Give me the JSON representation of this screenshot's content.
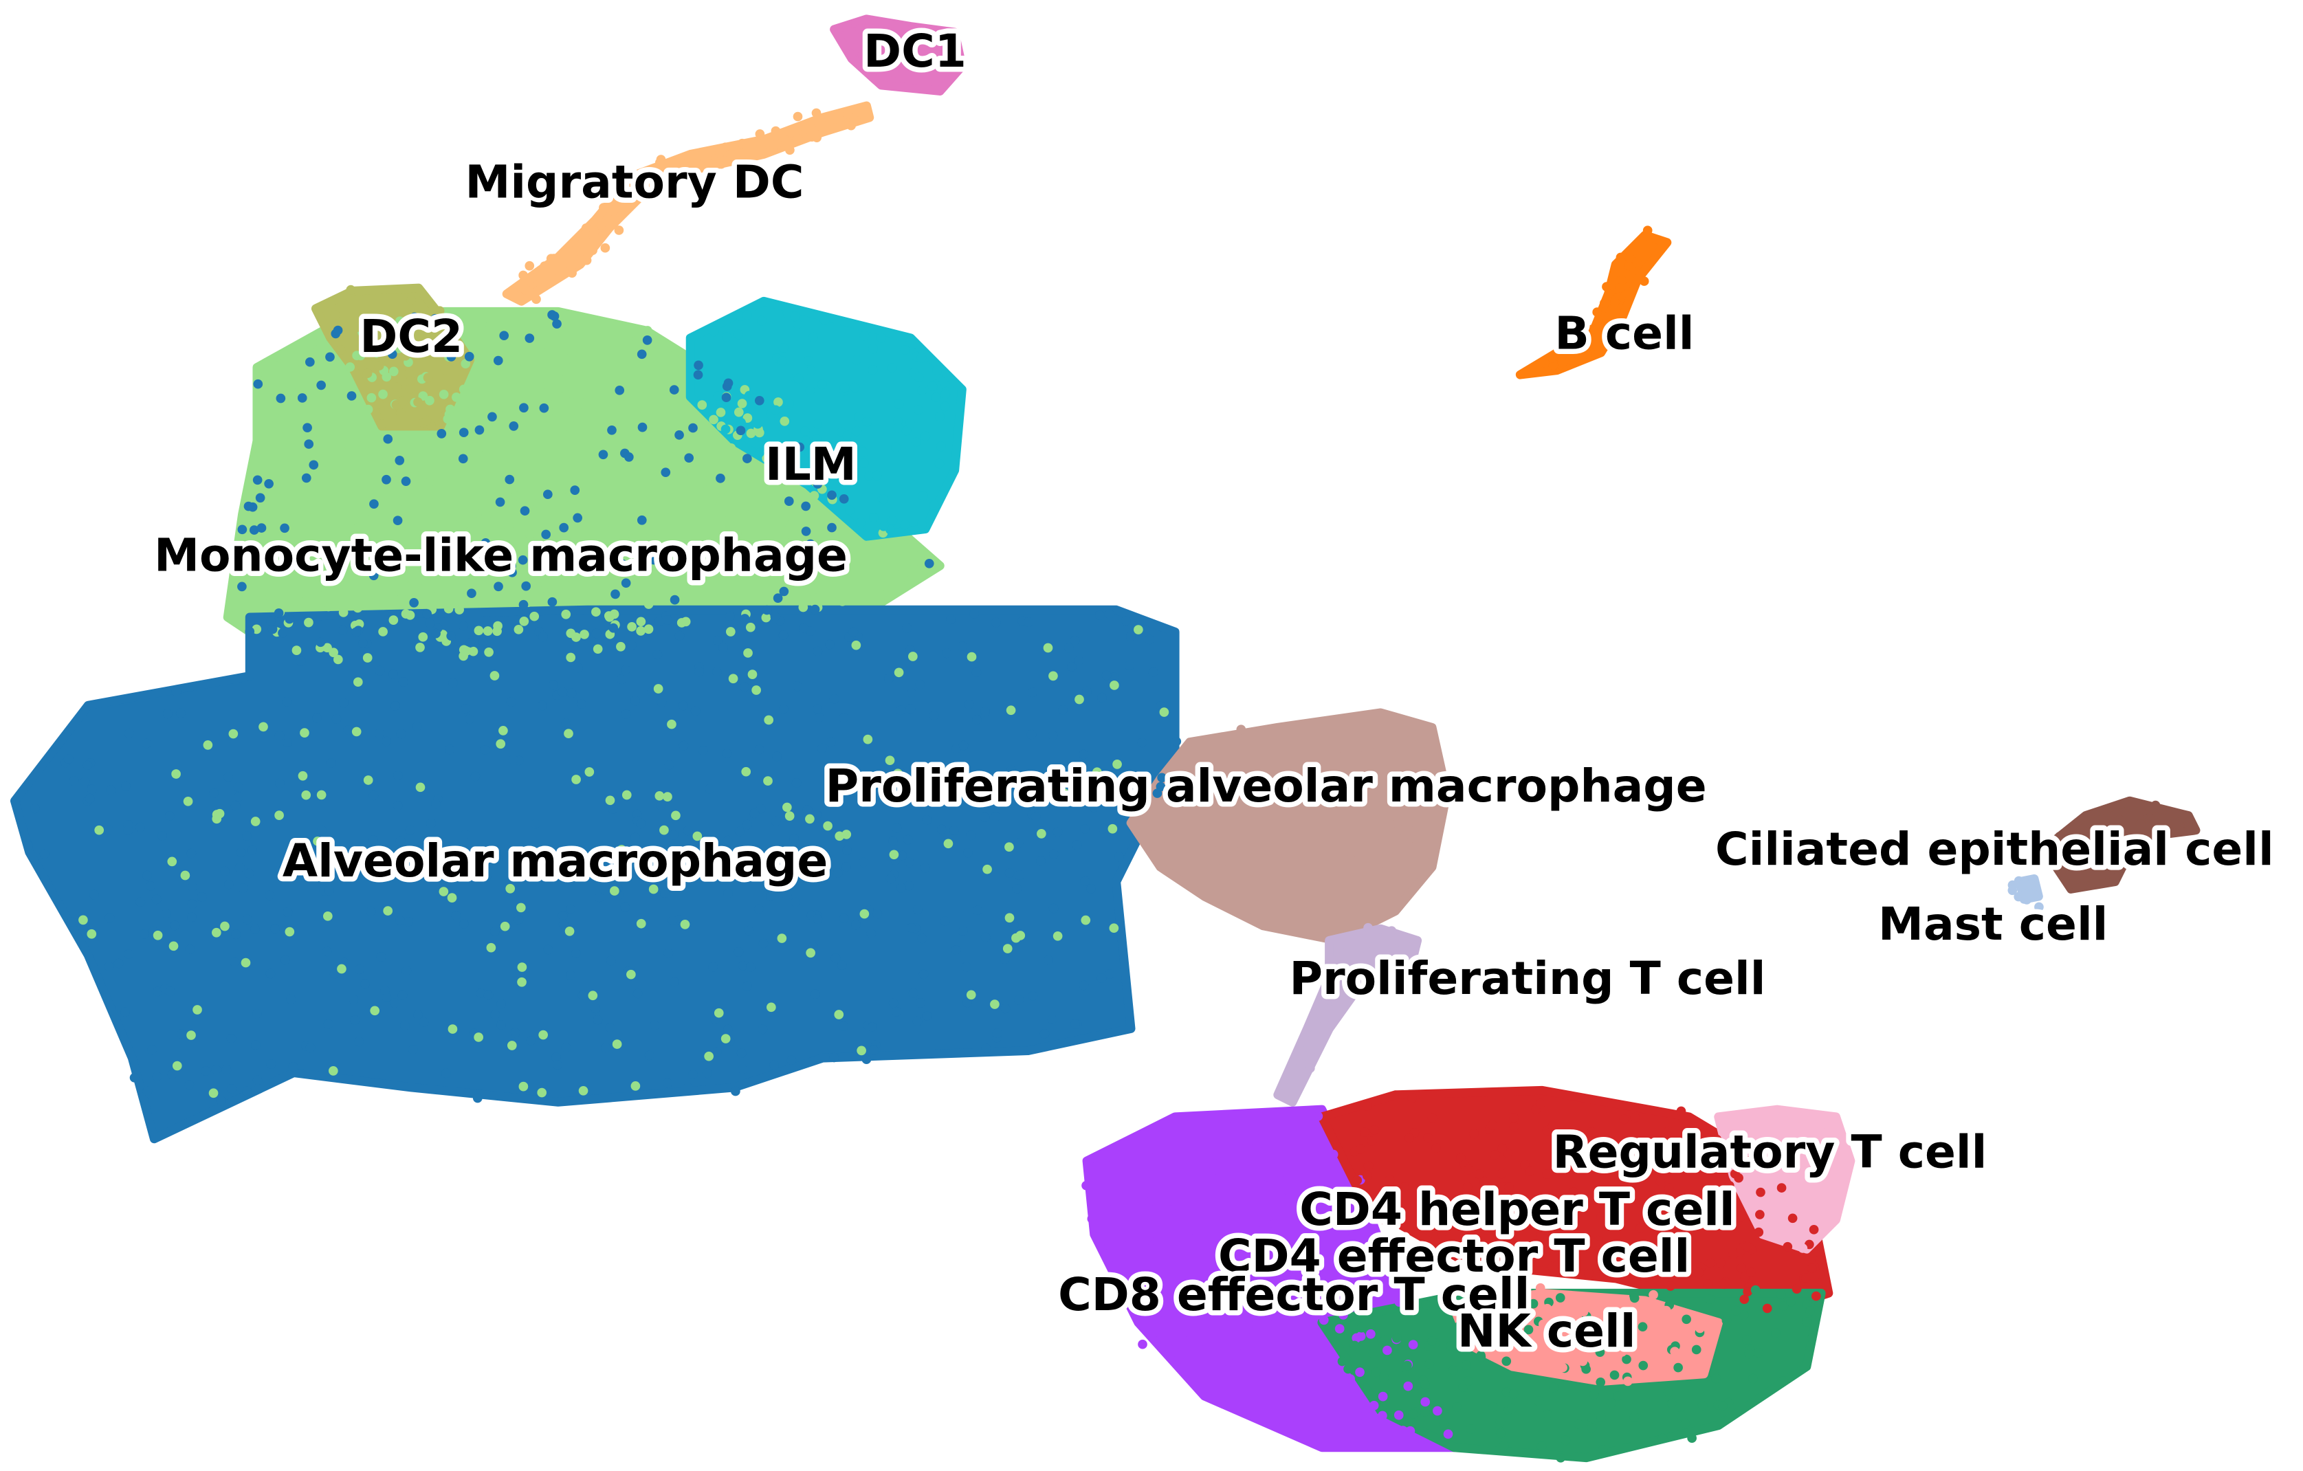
{
  "chart_data": {
    "type": "scatter",
    "series": [
      {
        "name": "Alveolar macrophage",
        "color": "#1f77b4"
      },
      {
        "name": "B cell",
        "color": "#ff7f0e"
      },
      {
        "name": "CD4 effector T cell",
        "color": "#279e68"
      },
      {
        "name": "CD4 helper T cell",
        "color": "#d62728"
      },
      {
        "name": "CD8 effector T cell",
        "color": "#aa40fc"
      },
      {
        "name": "Ciliated epithelial cell",
        "color": "#8c564b"
      },
      {
        "name": "DC1",
        "color": "#e377c2"
      },
      {
        "name": "DC2",
        "color": "#b5bd61"
      },
      {
        "name": "ILM",
        "color": "#17becf"
      },
      {
        "name": "Mast cell",
        "color": "#aec7e8"
      },
      {
        "name": "Migratory DC",
        "color": "#ffbb78"
      },
      {
        "name": "Monocyte-like macrophage",
        "color": "#98df8a"
      },
      {
        "name": "NK cell",
        "color": "#ff9896"
      },
      {
        "name": "Proliferating T cell",
        "color": "#c5b0d5"
      },
      {
        "name": "Proliferating alveolar macrophage",
        "color": "#c49c94"
      },
      {
        "name": "Regulatory T cell",
        "color": "#f7b6d2"
      }
    ]
  }
}
